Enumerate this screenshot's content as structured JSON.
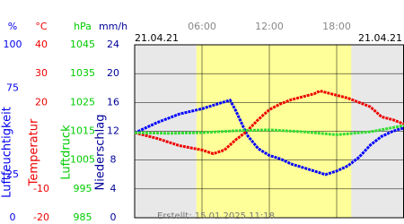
{
  "chart_data": {
    "type": "line",
    "date_left": "21.04.21",
    "date_right": "21.04.21",
    "annotation": "Erstellt: 15.01.2025 11:18",
    "xlim": [
      0,
      24
    ],
    "xticks": [
      {
        "value": 6,
        "label": "06:00"
      },
      {
        "value": 12,
        "label": "12:00"
      },
      {
        "value": 18,
        "label": "18:00"
      }
    ],
    "daylight": [
      5.5,
      19.3
    ],
    "grid": true,
    "axes": [
      {
        "unit": "%",
        "label": "Luftfeuchtigkeit",
        "color": "#0000ee",
        "ylim": [
          0,
          100
        ],
        "yticks": [
          0,
          25,
          75,
          100
        ]
      },
      {
        "unit": "°C",
        "label": "Temperatur",
        "color": "#ee0000",
        "ylim": [
          -20,
          40
        ],
        "yticks": [
          -20,
          -10,
          20,
          30,
          40
        ]
      },
      {
        "unit": "hPa",
        "label": "Luftdruck",
        "color": "#00cc00",
        "ylim": [
          985,
          1045
        ],
        "yticks": [
          985,
          995,
          1005,
          1015,
          1025,
          1035,
          1045
        ]
      },
      {
        "unit": "mm/h",
        "label": "Niederschlag",
        "color": "#000099",
        "ylim": [
          0,
          24
        ],
        "yticks": [
          0,
          4,
          8,
          12,
          16,
          20,
          24
        ]
      }
    ],
    "series": [
      {
        "name": "Luftfeuchtigkeit",
        "axis": 0,
        "color": "#0000ff",
        "x": [
          0,
          2,
          4,
          6,
          7,
          8,
          8.5,
          9,
          9.5,
          10,
          11,
          12,
          13,
          14,
          15,
          16,
          17,
          18,
          19,
          20,
          21,
          22,
          23,
          24
        ],
        "values": [
          49,
          55,
          60,
          63,
          65,
          67,
          68,
          62,
          55,
          48,
          40,
          36,
          34,
          31,
          29,
          27,
          25,
          27,
          30,
          35,
          42,
          47,
          50,
          52
        ]
      },
      {
        "name": "Temperatur",
        "axis": 1,
        "color": "#ee0000",
        "x": [
          0,
          2,
          4,
          6,
          7,
          8,
          9,
          10,
          11,
          12,
          13,
          14,
          15,
          16,
          16.5,
          17,
          18,
          19,
          20,
          21,
          22,
          23,
          24
        ],
        "values": [
          9.5,
          7.5,
          5,
          3.5,
          2.2,
          3.5,
          7,
          10,
          14,
          17.5,
          19.5,
          21,
          22,
          23,
          24,
          23.5,
          22.5,
          21.5,
          20,
          18.5,
          15,
          14,
          12.5
        ]
      },
      {
        "name": "Luftdruck",
        "axis": 2,
        "color": "#33dd33",
        "x": [
          0,
          3,
          6,
          9,
          12,
          15,
          18,
          21,
          24
        ],
        "values": [
          1014.5,
          1014.3,
          1014.5,
          1015.2,
          1015.5,
          1014.8,
          1013.8,
          1014.8,
          1017
        ]
      }
    ]
  }
}
